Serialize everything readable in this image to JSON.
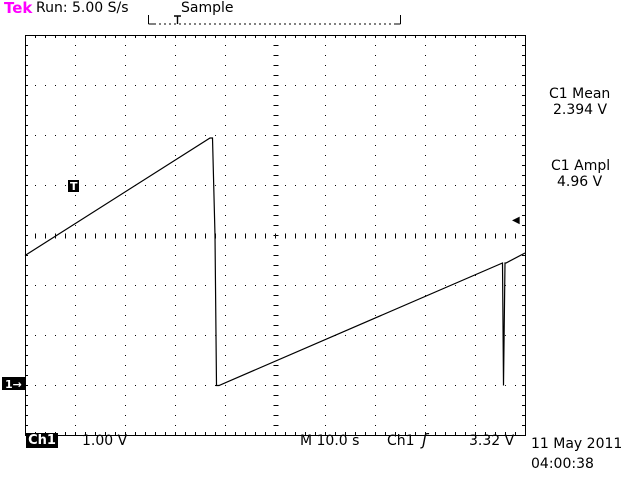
{
  "header": {
    "brand": "Tek",
    "run_status": "Run: 5.00 S/s",
    "acquisition_mode": "Sample",
    "trigger_position_marker": "T"
  },
  "measurements": [
    {
      "label": "C1 Mean",
      "value": "2.394 V"
    },
    {
      "label": "C1 Ampl",
      "value": "4.96 V"
    }
  ],
  "markers": {
    "trigger_point": "T",
    "channel_ground": "1→",
    "trigger_level_arrow": "◀"
  },
  "footer": {
    "channel": "Ch1",
    "volts_per_div": "1.00 V",
    "timebase": "M  10.0 s",
    "trigger_channel": "Ch1",
    "trigger_slope": "ʃ",
    "trigger_level": "3.32 V",
    "date": "11 May 2011",
    "time": "04:00:38"
  },
  "colors": {
    "brand": "#ff00ff",
    "trace": "#000000",
    "background": "#ffffff"
  },
  "chart_data": {
    "type": "line",
    "x_divisions": 10,
    "y_divisions": 8,
    "series": [
      {
        "x": [
          0,
          3.7,
          3.75,
          3.8,
          3.83,
          3.88,
          9.55,
          9.57,
          9.6,
          9.62,
          10
        ],
        "y": [
          -0.4,
          1.95,
          1.95,
          0.0,
          -3.0,
          -3.0,
          -0.55,
          -3.0,
          -0.55,
          -0.55,
          -0.35
        ]
      }
    ]
  }
}
